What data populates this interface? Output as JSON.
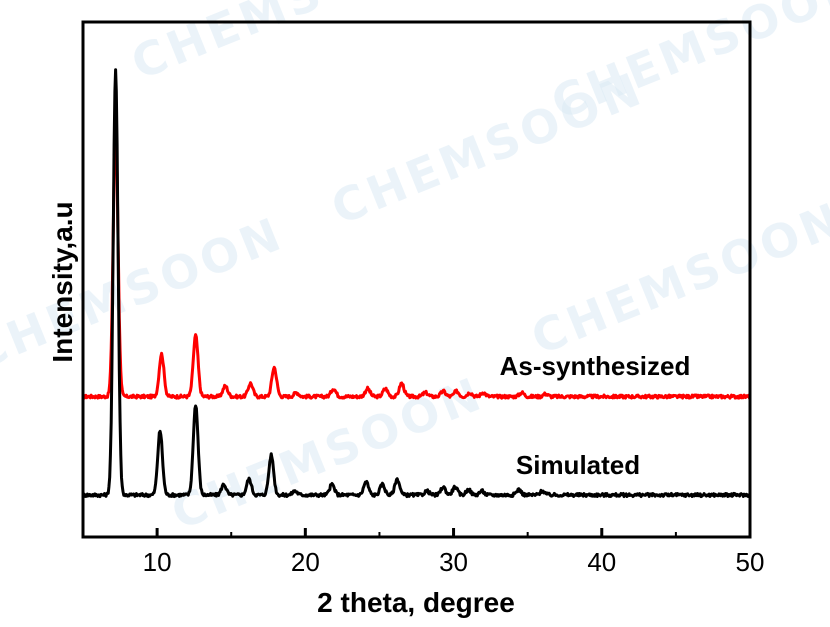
{
  "chart_data": {
    "type": "line",
    "xlabel": "2 theta, degree",
    "ylabel": "Intensity,a.u",
    "xlim": [
      5,
      50
    ],
    "x_ticks": [
      10,
      20,
      30,
      40,
      50
    ],
    "y_ticks_shown": false,
    "grid": false,
    "legend": "none (series labeled inline)",
    "series": [
      {
        "name": "As-synthesized",
        "color": "#ff0000",
        "baseline": 0.37,
        "peaks": [
          {
            "x": 7.2,
            "y": 1.02
          },
          {
            "x": 10.3,
            "y": 0.16
          },
          {
            "x": 12.6,
            "y": 0.23
          },
          {
            "x": 14.6,
            "y": 0.04
          },
          {
            "x": 16.3,
            "y": 0.05
          },
          {
            "x": 17.9,
            "y": 0.11
          },
          {
            "x": 19.4,
            "y": 0.015
          },
          {
            "x": 21.9,
            "y": 0.03
          },
          {
            "x": 24.2,
            "y": 0.03
          },
          {
            "x": 25.4,
            "y": 0.03
          },
          {
            "x": 26.5,
            "y": 0.05
          },
          {
            "x": 28.1,
            "y": 0.015
          },
          {
            "x": 29.3,
            "y": 0.02
          },
          {
            "x": 30.2,
            "y": 0.02
          },
          {
            "x": 31.1,
            "y": 0.015
          },
          {
            "x": 32.0,
            "y": 0.015
          },
          {
            "x": 34.6,
            "y": 0.015
          },
          {
            "x": 36.2,
            "y": 0.01
          }
        ]
      },
      {
        "name": "Simulated",
        "color": "#000000",
        "baseline": 0.0,
        "peaks": [
          {
            "x": 7.2,
            "y": 1.6
          },
          {
            "x": 10.2,
            "y": 0.24
          },
          {
            "x": 12.6,
            "y": 0.34
          },
          {
            "x": 14.5,
            "y": 0.04
          },
          {
            "x": 16.2,
            "y": 0.06
          },
          {
            "x": 17.7,
            "y": 0.15
          },
          {
            "x": 19.3,
            "y": 0.015
          },
          {
            "x": 21.8,
            "y": 0.04
          },
          {
            "x": 24.1,
            "y": 0.05
          },
          {
            "x": 25.2,
            "y": 0.04
          },
          {
            "x": 26.2,
            "y": 0.06
          },
          {
            "x": 28.2,
            "y": 0.015
          },
          {
            "x": 29.3,
            "y": 0.03
          },
          {
            "x": 30.1,
            "y": 0.03
          },
          {
            "x": 31.0,
            "y": 0.02
          },
          {
            "x": 31.9,
            "y": 0.015
          },
          {
            "x": 34.4,
            "y": 0.02
          },
          {
            "x": 36.0,
            "y": 0.015
          }
        ]
      }
    ]
  },
  "watermarks": [
    "CHEMSOON",
    "CHEMSOON",
    "CHEMSOON",
    "CHEMSOON",
    "CHEMSOON",
    "CHEMSOON"
  ]
}
